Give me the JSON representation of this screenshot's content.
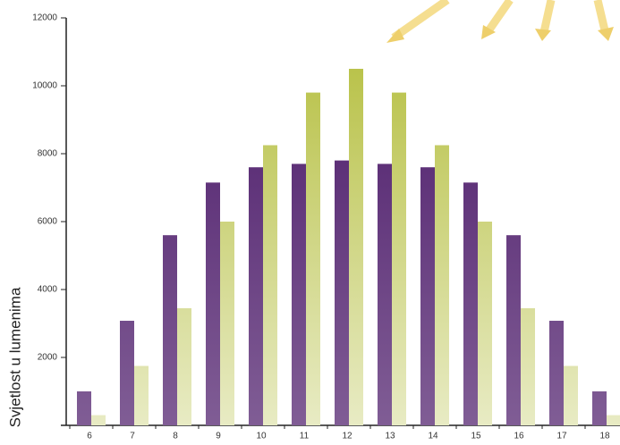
{
  "chart_data": {
    "type": "bar",
    "y_label": "Svjetlost u lumenima",
    "categories": [
      "6",
      "7",
      "8",
      "9",
      "10",
      "11",
      "12",
      "13",
      "14",
      "15",
      "16",
      "17",
      "18"
    ],
    "series": [
      {
        "color": "#4a1868",
        "values": [
          1000,
          3080,
          5600,
          7150,
          7600,
          7700,
          7800,
          7700,
          7600,
          7150,
          5600,
          3080,
          1000
        ]
      },
      {
        "color": "#b3bd3a",
        "values": [
          300,
          1750,
          3450,
          6000,
          8250,
          9800,
          10500,
          9800,
          8250,
          6000,
          3450,
          1750,
          300
        ]
      }
    ],
    "ylim": [
      0,
      12000
    ],
    "yticks": [
      2000,
      4000,
      6000,
      8000,
      10000,
      12000
    ],
    "grid": false
  }
}
